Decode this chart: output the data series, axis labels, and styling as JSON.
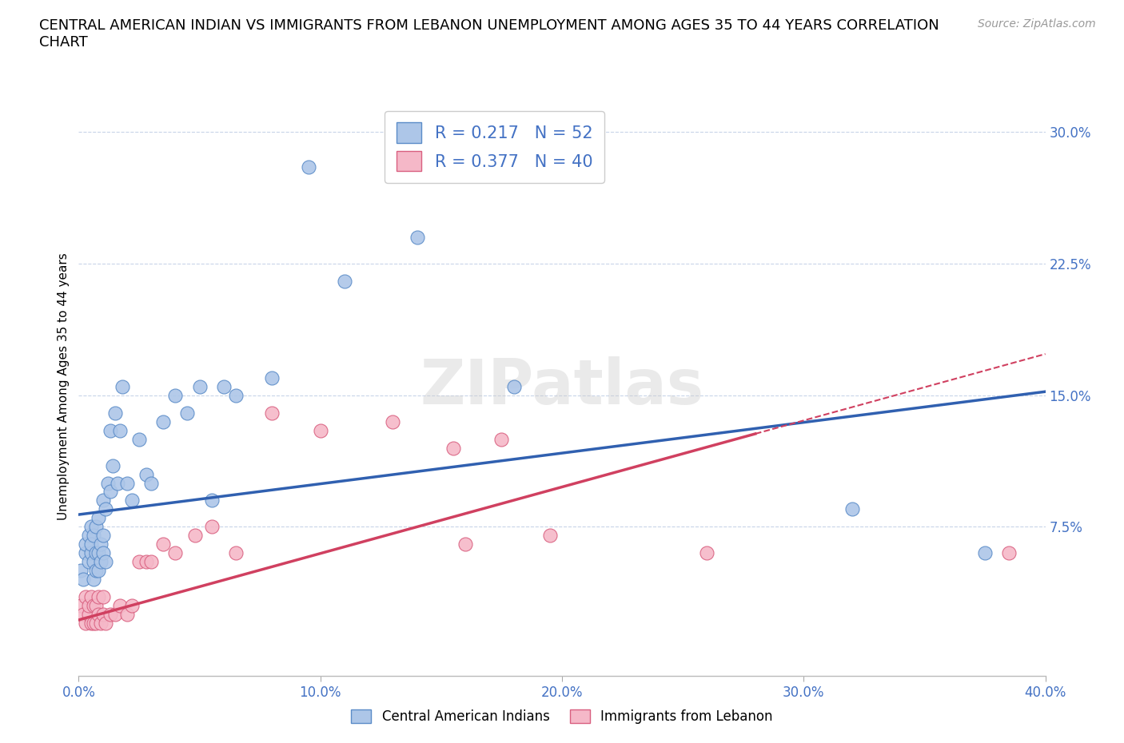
{
  "title": "CENTRAL AMERICAN INDIAN VS IMMIGRANTS FROM LEBANON UNEMPLOYMENT AMONG AGES 35 TO 44 YEARS CORRELATION\nCHART",
  "source": "Source: ZipAtlas.com",
  "ylabel": "Unemployment Among Ages 35 to 44 years",
  "xlim": [
    0.0,
    0.4
  ],
  "ylim": [
    -0.01,
    0.32
  ],
  "xticks": [
    0.0,
    0.1,
    0.2,
    0.3,
    0.4
  ],
  "xticklabels": [
    "0.0%",
    "10.0%",
    "20.0%",
    "30.0%",
    "40.0%"
  ],
  "yticks": [
    0.0,
    0.075,
    0.15,
    0.225,
    0.3
  ],
  "yticklabels": [
    "",
    "7.5%",
    "15.0%",
    "22.5%",
    "30.0%"
  ],
  "blue_fill": "#adc6e8",
  "pink_fill": "#f5b8c8",
  "blue_edge": "#5b8cc8",
  "pink_edge": "#d96080",
  "blue_line": "#3060b0",
  "pink_line": "#d04060",
  "tick_color": "#4472c4",
  "grid_color": "#c8d4e8",
  "watermark": "ZIPatlas",
  "R_blue": 0.217,
  "N_blue": 52,
  "R_pink": 0.377,
  "N_pink": 40,
  "blue_x": [
    0.001,
    0.002,
    0.003,
    0.003,
    0.004,
    0.004,
    0.005,
    0.005,
    0.005,
    0.006,
    0.006,
    0.006,
    0.007,
    0.007,
    0.007,
    0.008,
    0.008,
    0.008,
    0.009,
    0.009,
    0.01,
    0.01,
    0.01,
    0.011,
    0.011,
    0.012,
    0.013,
    0.013,
    0.014,
    0.015,
    0.016,
    0.017,
    0.018,
    0.02,
    0.022,
    0.025,
    0.028,
    0.03,
    0.035,
    0.04,
    0.045,
    0.05,
    0.055,
    0.06,
    0.065,
    0.08,
    0.095,
    0.11,
    0.14,
    0.18,
    0.32,
    0.375
  ],
  "blue_y": [
    0.05,
    0.045,
    0.06,
    0.065,
    0.055,
    0.07,
    0.06,
    0.065,
    0.075,
    0.045,
    0.055,
    0.07,
    0.05,
    0.06,
    0.075,
    0.05,
    0.06,
    0.08,
    0.055,
    0.065,
    0.06,
    0.07,
    0.09,
    0.055,
    0.085,
    0.1,
    0.095,
    0.13,
    0.11,
    0.14,
    0.1,
    0.13,
    0.155,
    0.1,
    0.09,
    0.125,
    0.105,
    0.1,
    0.135,
    0.15,
    0.14,
    0.155,
    0.09,
    0.155,
    0.15,
    0.16,
    0.28,
    0.215,
    0.24,
    0.155,
    0.085,
    0.06
  ],
  "pink_x": [
    0.001,
    0.002,
    0.003,
    0.003,
    0.004,
    0.004,
    0.005,
    0.005,
    0.006,
    0.006,
    0.007,
    0.007,
    0.008,
    0.008,
    0.009,
    0.01,
    0.01,
    0.011,
    0.013,
    0.015,
    0.017,
    0.02,
    0.022,
    0.025,
    0.028,
    0.03,
    0.035,
    0.04,
    0.048,
    0.055,
    0.065,
    0.08,
    0.1,
    0.13,
    0.155,
    0.16,
    0.175,
    0.195,
    0.26,
    0.385
  ],
  "pink_y": [
    0.03,
    0.025,
    0.02,
    0.035,
    0.025,
    0.03,
    0.02,
    0.035,
    0.02,
    0.03,
    0.02,
    0.03,
    0.025,
    0.035,
    0.02,
    0.025,
    0.035,
    0.02,
    0.025,
    0.025,
    0.03,
    0.025,
    0.03,
    0.055,
    0.055,
    0.055,
    0.065,
    0.06,
    0.07,
    0.075,
    0.06,
    0.14,
    0.13,
    0.135,
    0.12,
    0.065,
    0.125,
    0.07,
    0.06,
    0.06
  ],
  "blue_trend_x0": 0.0,
  "blue_trend_y0": 0.082,
  "blue_trend_x1": 0.4,
  "blue_trend_y1": 0.152,
  "pink_trend_x0": 0.0,
  "pink_trend_y0": 0.022,
  "pink_trend_x1": 0.28,
  "pink_trend_y1": 0.128
}
